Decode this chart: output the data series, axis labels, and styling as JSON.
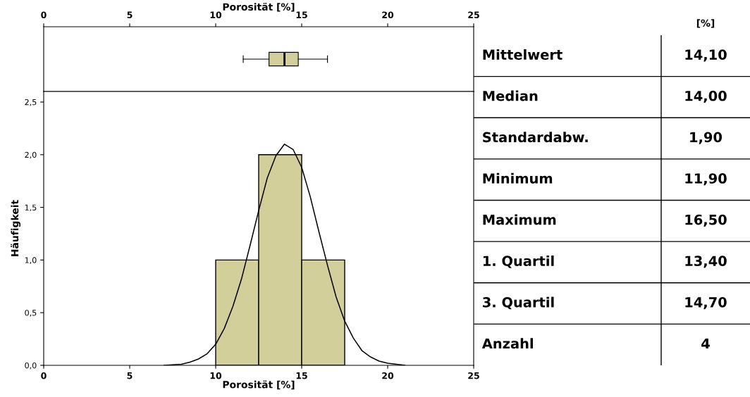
{
  "chart_data": [
    {
      "type": "box",
      "categories": [
        null
      ],
      "xlabel": "Porosität [%]",
      "xlim": [
        0,
        25
      ],
      "xticks": [
        0,
        5,
        10,
        15,
        20,
        25
      ],
      "orientation": "horizontal",
      "boxes": [
        {
          "low": 11.6,
          "q1": 13.1,
          "median": 14.0,
          "q3": 14.8,
          "high": 16.5
        }
      ],
      "color": "#d3cf9b"
    },
    {
      "type": "histogram",
      "xlabel": "Porosität [%]",
      "ylabel": "Häufigkeit",
      "xlim": [
        0,
        25
      ],
      "xticks": [
        0,
        5,
        10,
        15,
        20,
        25
      ],
      "ylim": [
        0,
        2.6
      ],
      "yticks": [
        {
          "value": 0,
          "label": "0,0"
        },
        {
          "value": 0.5,
          "label": "0,5"
        },
        {
          "value": 1,
          "label": "1,0"
        },
        {
          "value": 1.5,
          "label": "1,5"
        },
        {
          "value": 2,
          "label": "2,0"
        },
        {
          "value": 2.5,
          "label": "2,5"
        }
      ],
      "bins": [
        10,
        12.5,
        15,
        17.5
      ],
      "series": [
        {
          "type": "histogram",
          "color": "#d3cf9b",
          "values": [
            1,
            2,
            1
          ]
        },
        {
          "type": "line",
          "color": "#000000",
          "x": [
            7,
            8,
            8.5,
            9,
            9.5,
            10,
            10.5,
            11,
            11.5,
            12,
            12.5,
            13,
            13.5,
            14,
            14.5,
            15,
            15.5,
            16,
            16.5,
            17,
            17.5,
            18,
            18.5,
            19,
            19.5,
            20,
            21
          ],
          "values": [
            0.0,
            0.01,
            0.03,
            0.06,
            0.11,
            0.2,
            0.35,
            0.56,
            0.82,
            1.14,
            1.47,
            1.78,
            1.99,
            2.1,
            2.05,
            1.88,
            1.6,
            1.27,
            0.95,
            0.65,
            0.42,
            0.26,
            0.14,
            0.08,
            0.04,
            0.02,
            0.0
          ]
        }
      ]
    },
    {
      "type": "other",
      "title": "[%]",
      "annotations": [
        "Mittelwert",
        "14,10",
        "Median",
        "14,00",
        "Standardabw.",
        "1,90",
        "Minimum",
        "11,90",
        "Maximum",
        "16,50",
        "1. Quartil",
        "13,40",
        "3. Quartil",
        "14,70",
        "Anzahl",
        "4"
      ]
    }
  ]
}
